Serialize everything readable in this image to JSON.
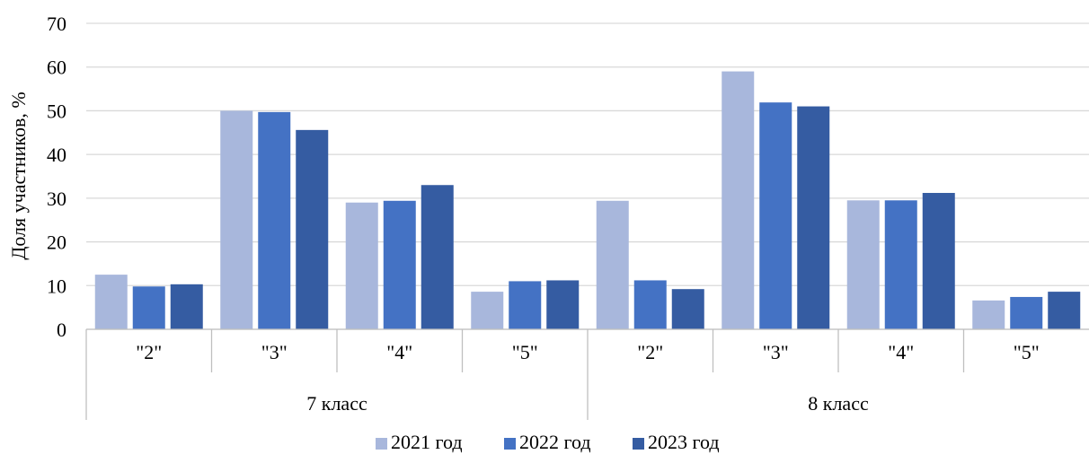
{
  "chart_data": {
    "type": "bar",
    "ylabel": "Доля участников, %",
    "xlabel": "",
    "ylim": [
      0,
      70
    ],
    "yticks": [
      0,
      10,
      20,
      30,
      40,
      50,
      60,
      70
    ],
    "grid": true,
    "legend_position": "bottom",
    "groups": [
      {
        "label": "7 класс",
        "categories": [
          "\"2\"",
          "\"3\"",
          "\"4\"",
          "\"5\""
        ]
      },
      {
        "label": "8 класс",
        "categories": [
          "\"2\"",
          "\"3\"",
          "\"4\"",
          "\"5\""
        ]
      }
    ],
    "categories": [
      "\"2\"",
      "\"3\"",
      "\"4\"",
      "\"5\"",
      "\"2\"",
      "\"3\"",
      "\"4\"",
      "\"5\""
    ],
    "series": [
      {
        "name": "2021 год",
        "color": "#a8b7dc",
        "values": [
          12.5,
          50,
          29,
          8.6,
          29.4,
          59,
          29.5,
          6.6
        ]
      },
      {
        "name": "2022 год",
        "color": "#4472c4",
        "values": [
          9.8,
          49.7,
          29.4,
          11,
          11.2,
          51.9,
          29.5,
          7.4
        ]
      },
      {
        "name": "2023 год",
        "color": "#355ca2",
        "values": [
          10.3,
          45.6,
          33,
          11.2,
          9.2,
          51,
          31.2,
          8.6
        ]
      }
    ]
  }
}
